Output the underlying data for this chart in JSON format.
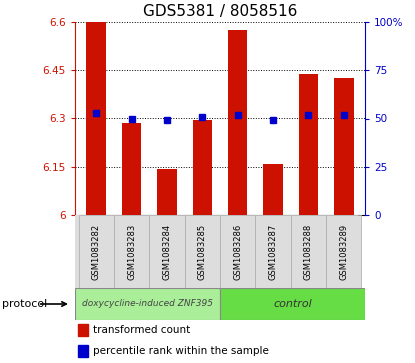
{
  "title": "GDS5381 / 8058516",
  "samples": [
    "GSM1083282",
    "GSM1083283",
    "GSM1083284",
    "GSM1083285",
    "GSM1083286",
    "GSM1083287",
    "GSM1083288",
    "GSM1083289"
  ],
  "red_values": [
    6.6,
    6.285,
    6.143,
    6.295,
    6.575,
    6.158,
    6.437,
    6.425
  ],
  "blue_values": [
    53,
    50,
    49,
    51,
    52,
    49,
    52,
    52
  ],
  "ylim_left": [
    6.0,
    6.6
  ],
  "ylim_right": [
    0,
    100
  ],
  "yticks_left": [
    6.0,
    6.15,
    6.3,
    6.45,
    6.6
  ],
  "yticks_right": [
    0,
    25,
    50,
    75,
    100
  ],
  "ytick_labels_left": [
    "6",
    "6.15",
    "6.3",
    "6.45",
    "6.6"
  ],
  "ytick_labels_right": [
    "0",
    "25",
    "50",
    "75",
    "100%"
  ],
  "group1_label": "doxycycline-induced ZNF395",
  "group2_label": "control",
  "protocol_label": "protocol",
  "legend1": "transformed count",
  "legend2": "percentile rank within the sample",
  "bar_color": "#cc1100",
  "dot_color": "#0000cc",
  "group1_color": "#aaee99",
  "group2_color": "#66dd44",
  "group1_count": 4,
  "group2_count": 4,
  "bar_width": 0.55,
  "title_fontsize": 11,
  "tick_fontsize": 7.5,
  "sample_fontsize": 6,
  "legend_fontsize": 7.5
}
